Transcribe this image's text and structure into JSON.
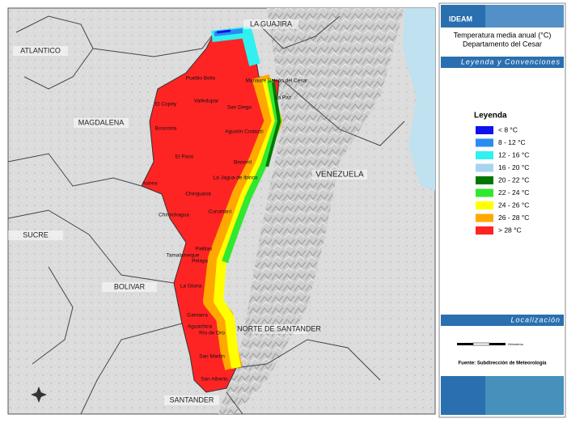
{
  "map": {
    "regions": [
      "LA GUAJIRA",
      "ATLANTICO",
      "MAGDALENA",
      "VENEZUELA",
      "SUCRE",
      "BOLIVAR",
      "NORTE DE SANTANDER",
      "SANTANDER"
    ],
    "towns": [
      "Pueblo Bello",
      "Manaure Balcón del Cesar",
      "El Copey",
      "Valledupar",
      "La Paz",
      "San Diego",
      "Bosconia",
      "Agustín Codazzi",
      "El Paso",
      "Becerril",
      "La Jagua de Ibirico",
      "Astrea",
      "Chiriguaná",
      "Curumaní",
      "Chimichagua",
      "Pailitas",
      "Tamalameque",
      "Pelaya",
      "La Gloria",
      "Gamarra",
      "Aguachica",
      "Río de Oro",
      "San Martín",
      "San Alberto"
    ]
  },
  "panel": {
    "logo": "IDEAM",
    "title": "Temperatura media anual (°C)",
    "subtitle": "Departamento del Cesar",
    "legend_header": "Leyenda y Convenciones",
    "location_header": "Localización",
    "scale_unit": "Kilómetros",
    "source": "Fuente: Subdirección de Meteorología"
  },
  "legend": {
    "title": "Leyenda",
    "items": [
      {
        "label": "< 8 °C",
        "color": "#1010f0"
      },
      {
        "label": "8 - 12 °C",
        "color": "#2a8cf0"
      },
      {
        "label": "12 - 16 °C",
        "color": "#30f0f0"
      },
      {
        "label": "16 - 20 °C",
        "color": "#a8d4ee"
      },
      {
        "label": "20 - 22 °C",
        "color": "#007800"
      },
      {
        "label": "22 - 24 °C",
        "color": "#30e830"
      },
      {
        "label": "24 - 26 °C",
        "color": "#ffff00"
      },
      {
        "label": "26 - 28 °C",
        "color": "#ffa800"
      },
      {
        "label": "> 28 °C",
        "color": "#ff2424"
      }
    ]
  }
}
